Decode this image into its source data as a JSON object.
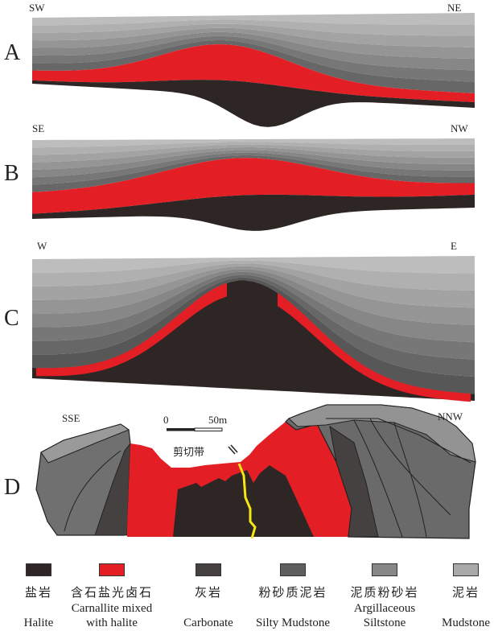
{
  "panels": {
    "A": {
      "letter": "A",
      "left": "SW",
      "right": "NE"
    },
    "B": {
      "letter": "B",
      "left": "SE",
      "right": "NW"
    },
    "C": {
      "letter": "C",
      "left": "W",
      "right": "E"
    },
    "D": {
      "letter": "D",
      "left": "SSE",
      "right": "NNW",
      "scale_start": "0",
      "scale_end": "50m",
      "shear_zone": "剪切带"
    }
  },
  "colors": {
    "halite": "#2e2624",
    "carnallite": "#e31e24",
    "carbonate": "#454141",
    "silty_mudstone": "#5e5e5e",
    "argillaceous_siltstone": "#878787",
    "mudstone": "#a9a9a9",
    "fault": "#f5e614"
  },
  "legend": [
    {
      "cn": "盐岩",
      "en1": "",
      "en2": "Halite",
      "color": "#2e2624"
    },
    {
      "cn": "含石盐光卤石",
      "en1": "Carnallite mixed",
      "en2": "with halite",
      "color": "#e31e24"
    },
    {
      "cn": "灰岩",
      "en1": "",
      "en2": "Carbonate",
      "color": "#454141"
    },
    {
      "cn": "粉砂质泥岩",
      "en1": "",
      "en2": "Silty Mudstone",
      "color": "#5e5e5e"
    },
    {
      "cn": "泥质粉砂岩",
      "en1": "Argillaceous",
      "en2": "Siltstone",
      "color": "#878787"
    },
    {
      "cn": "泥岩",
      "en1": "",
      "en2": "Mudstone",
      "color": "#a9a9a9"
    }
  ]
}
